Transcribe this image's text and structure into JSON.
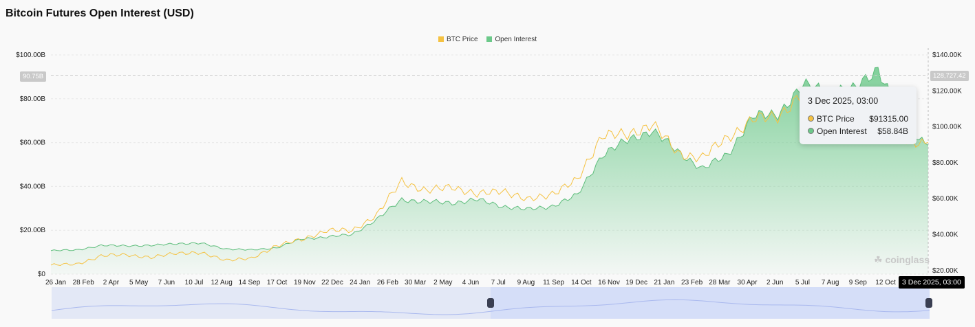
{
  "chart_data": {
    "type": "area",
    "title": "Bitcoin Futures Open Interest (USD)",
    "legend": {
      "placement": "top-center",
      "entries": [
        "BTC Price",
        "Open Interest"
      ]
    },
    "colors": {
      "btc_price": "#f5c242",
      "open_interest": "#6cc98a",
      "navigator": "#a9b8ee"
    },
    "x_tick_labels": [
      "26 Jan",
      "28 Feb",
      "2 Apr",
      "5 May",
      "7 Jun",
      "10 Jul",
      "12 Aug",
      "14 Sep",
      "17 Oct",
      "19 Nov",
      "22 Dec",
      "24 Jan",
      "26 Feb",
      "30 Mar",
      "2 May",
      "4 Jun",
      "7 Jul",
      "9 Aug",
      "11 Sep",
      "14 Oct",
      "16 Nov",
      "19 Dec",
      "21 Jan",
      "23 Feb",
      "28 Mar",
      "30 Apr",
      "2 Jun",
      "5 Jul",
      "7 Aug",
      "9 Sep",
      "12 Oct"
    ],
    "y_left_tick_labels": [
      "$0",
      "$20.00B",
      "$40.00B",
      "$60.00B",
      "$80.00B",
      "$100.00B"
    ],
    "y_right_tick_labels": [
      "$20.00K",
      "$40.00K",
      "$60.00K",
      "$80.00K",
      "$100.00K",
      "$120.00K",
      "$140.00K"
    ],
    "y_left_range": [
      0,
      100
    ],
    "y_right_range": [
      18,
      140
    ],
    "grid": true,
    "x": [
      "2023-01",
      "2023-02",
      "2023-03",
      "2023-04",
      "2023-05",
      "2023-06",
      "2023-07",
      "2023-08",
      "2023-09",
      "2023-10",
      "2023-11",
      "2023-12",
      "2024-01",
      "2024-02",
      "2024-03",
      "2024-04",
      "2024-05",
      "2024-06",
      "2024-07",
      "2024-08",
      "2024-09",
      "2024-10",
      "2024-11",
      "2024-12",
      "2025-01",
      "2025-02",
      "2025-03",
      "2025-04",
      "2025-05",
      "2025-06",
      "2025-07",
      "2025-08",
      "2025-09",
      "2025-10",
      "2025-11",
      "2025-12-03"
    ],
    "series": [
      {
        "name": "Open Interest",
        "unit": "USD B",
        "axis": "left",
        "values": [
          10.7,
          11,
          13,
          13,
          13,
          14,
          14,
          11.5,
          11,
          12,
          16,
          17,
          18,
          25,
          34,
          33,
          32.5,
          34,
          31,
          29.5,
          31,
          36,
          54.5,
          61,
          65.5,
          56,
          48,
          54.5,
          72,
          73,
          86,
          84,
          84,
          94,
          68.5,
          58.84
        ]
      },
      {
        "name": "BTC Price",
        "unit": "USD K",
        "axis": "right",
        "values": [
          23,
          23.5,
          28,
          29,
          27,
          30,
          29.5,
          26,
          26.5,
          34,
          37,
          42.5,
          42,
          51,
          70,
          64,
          67,
          62,
          65,
          59,
          63,
          70,
          96,
          95,
          102,
          85,
          83,
          94,
          104,
          106,
          118,
          115,
          112,
          110,
          92,
          91.315
        ]
      }
    ],
    "crosshair": {
      "x_label": "3 Dec 2025, 03:00",
      "y_left_label": "90.75B",
      "y_right_label": "128,727.42"
    },
    "tooltip": {
      "date": "3 Dec 2025, 03:00",
      "rows": [
        {
          "label": "BTC Price",
          "value": "$91315.00"
        },
        {
          "label": "Open Interest",
          "value": "$58.84B"
        }
      ]
    },
    "watermark": "coinglass"
  }
}
